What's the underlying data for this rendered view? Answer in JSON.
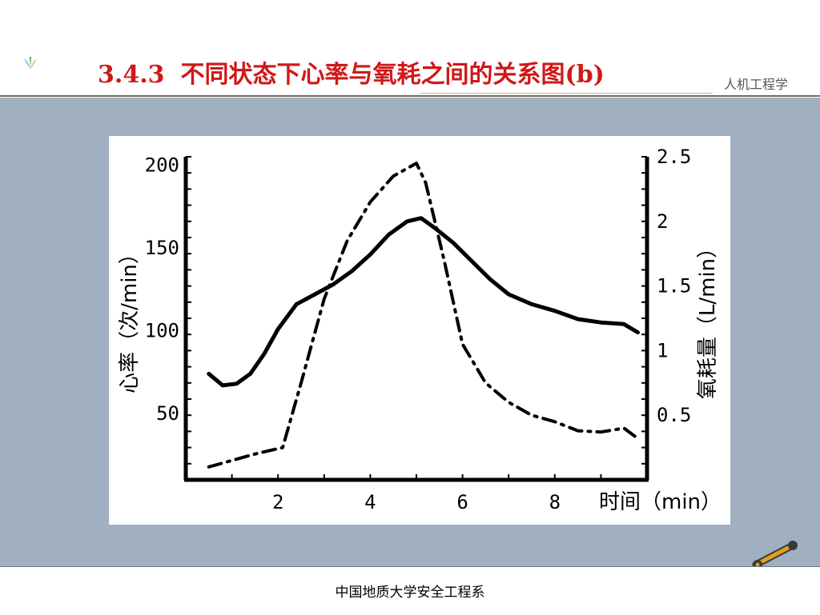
{
  "header": {
    "section_number": "3.4.3",
    "title": "不同状态下心率与氧耗之间的关系图(b)",
    "course_label": "人机工程学"
  },
  "footer": {
    "text": "中国地质大学安全工程系"
  },
  "icons": {
    "logo": "colorful-leaf-logo-icon",
    "wrench": "wrench-icon"
  },
  "colors": {
    "title": "#d01818",
    "content_background": "#a1b0c0"
  },
  "chart_data": {
    "type": "line",
    "xlabel": "时间（min）",
    "ylabel_left": "心率（次/min）",
    "ylabel_right": "氧耗量（L/min）",
    "x_ticks": [
      "2",
      "4",
      "6",
      "8"
    ],
    "y_left_ticks": [
      "50",
      "100",
      "150",
      "200"
    ],
    "y_right_ticks": [
      "0.5",
      "1",
      "1.5",
      "2",
      "2.5"
    ],
    "xlim": [
      0,
      10
    ],
    "ylim_left": [
      10,
      205
    ],
    "ylim_right": [
      0,
      2.5
    ],
    "grid": false,
    "legend": "none",
    "series": [
      {
        "axis": "left",
        "style": "solid",
        "x": [
          0.5,
          0.8,
          1.1,
          1.4,
          1.7,
          2.0,
          2.4,
          2.8,
          3.2,
          3.6,
          4.0,
          4.4,
          4.8,
          5.1,
          5.4,
          5.8,
          6.2,
          6.6,
          7.0,
          7.5,
          8.0,
          8.5,
          9.0,
          9.5,
          9.8
        ],
        "values": [
          74,
          67,
          68,
          74,
          86,
          101,
          116,
          122,
          128,
          136,
          146,
          158,
          166,
          168,
          162,
          153,
          142,
          131,
          122,
          116,
          112,
          107,
          105,
          104,
          99
        ]
      },
      {
        "axis": "right",
        "style": "dashdot",
        "x": [
          0.5,
          1.0,
          1.5,
          2.1,
          2.5,
          3.0,
          3.5,
          4.0,
          4.5,
          5.0,
          5.2,
          5.6,
          6.0,
          6.5,
          7.0,
          7.5,
          8.0,
          8.5,
          9.0,
          9.5,
          9.8
        ],
        "values": [
          0.1,
          0.15,
          0.2,
          0.25,
          0.75,
          1.4,
          1.85,
          2.15,
          2.35,
          2.45,
          2.3,
          1.7,
          1.05,
          0.75,
          0.6,
          0.5,
          0.45,
          0.38,
          0.37,
          0.4,
          0.32
        ]
      }
    ]
  }
}
